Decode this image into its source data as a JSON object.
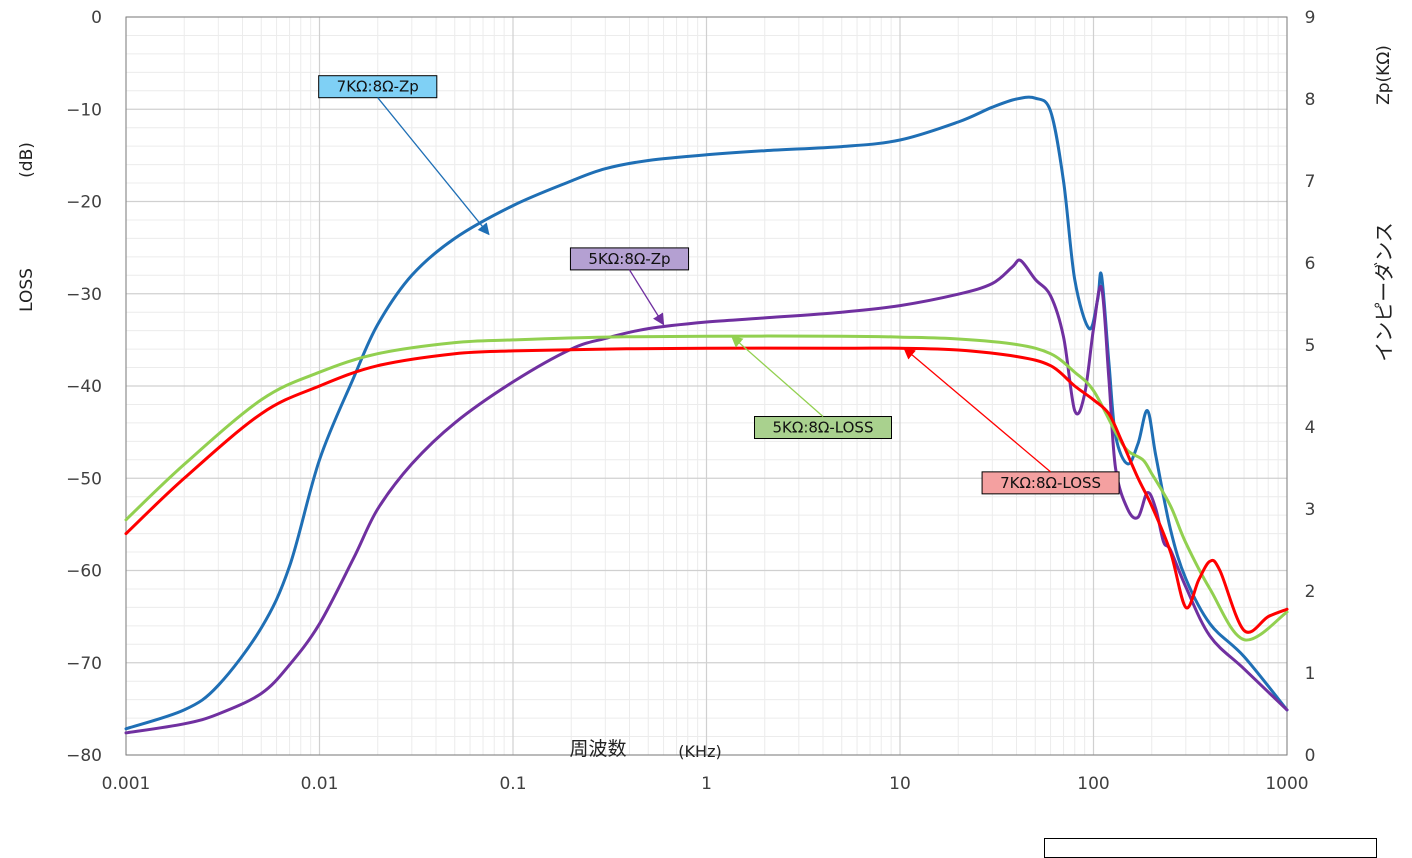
{
  "chart_data": {
    "type": "line",
    "x_scale": "log",
    "xlim": [
      0.001,
      1000
    ],
    "ylim_left": [
      -80,
      0
    ],
    "ylim_right": [
      0,
      9
    ],
    "x_ticks": [
      "0.001",
      "0.01",
      "0.1",
      "1",
      "10",
      "100",
      "1000"
    ],
    "y_left_ticks": [
      "0",
      "−10",
      "−20",
      "−30",
      "−40",
      "−50",
      "−60",
      "−70",
      "−80"
    ],
    "y_right_ticks": [
      "9",
      "8",
      "7",
      "6",
      "5",
      "4",
      "3",
      "2",
      "1",
      "0"
    ],
    "xlabel": "周波数",
    "xlabel_unit": "(KHz)",
    "ylabel_left": "LOSS",
    "ylabel_left_unit": "(dB)",
    "ylabel_right": "インピーダンス",
    "ylabel_right_unit": "Zp(KΩ)",
    "grid": true,
    "series": [
      {
        "name": "7KΩ:8Ω-Zp",
        "axis": "right",
        "color": "#1f6fb5",
        "label_fill": "#7fd0f5",
        "label_at": [
          0.02,
          8.15
        ],
        "arrow_to": [
          0.075,
          6.35
        ],
        "points": [
          [
            0.001,
            0.32
          ],
          [
            0.002,
            0.55
          ],
          [
            0.003,
            0.85
          ],
          [
            0.005,
            1.55
          ],
          [
            0.007,
            2.3
          ],
          [
            0.01,
            3.6
          ],
          [
            0.015,
            4.6
          ],
          [
            0.02,
            5.25
          ],
          [
            0.03,
            5.85
          ],
          [
            0.05,
            6.3
          ],
          [
            0.1,
            6.7
          ],
          [
            0.2,
            7.0
          ],
          [
            0.3,
            7.15
          ],
          [
            0.5,
            7.25
          ],
          [
            1,
            7.32
          ],
          [
            2,
            7.37
          ],
          [
            5,
            7.42
          ],
          [
            10,
            7.5
          ],
          [
            20,
            7.72
          ],
          [
            30,
            7.9
          ],
          [
            40,
            8.0
          ],
          [
            50,
            8.01
          ],
          [
            60,
            7.85
          ],
          [
            70,
            7.0
          ],
          [
            80,
            5.8
          ],
          [
            95,
            5.2
          ],
          [
            105,
            5.55
          ],
          [
            110,
            5.85
          ],
          [
            120,
            4.8
          ],
          [
            130,
            3.9
          ],
          [
            150,
            3.55
          ],
          [
            170,
            3.8
          ],
          [
            190,
            4.2
          ],
          [
            210,
            3.65
          ],
          [
            250,
            2.75
          ],
          [
            300,
            2.15
          ],
          [
            400,
            1.6
          ],
          [
            600,
            1.2
          ],
          [
            1000,
            0.55
          ]
        ]
      },
      {
        "name": "5KΩ:8Ω-Zp",
        "axis": "right",
        "color": "#7030a0",
        "label_fill": "#b4a0d2",
        "label_at": [
          0.4,
          6.05
        ],
        "arrow_to": [
          0.6,
          5.25
        ],
        "points": [
          [
            0.001,
            0.27
          ],
          [
            0.002,
            0.38
          ],
          [
            0.003,
            0.5
          ],
          [
            0.005,
            0.75
          ],
          [
            0.007,
            1.1
          ],
          [
            0.01,
            1.6
          ],
          [
            0.015,
            2.4
          ],
          [
            0.02,
            3.0
          ],
          [
            0.03,
            3.55
          ],
          [
            0.05,
            4.05
          ],
          [
            0.1,
            4.55
          ],
          [
            0.2,
            4.95
          ],
          [
            0.3,
            5.08
          ],
          [
            0.5,
            5.2
          ],
          [
            1,
            5.28
          ],
          [
            2,
            5.33
          ],
          [
            5,
            5.4
          ],
          [
            10,
            5.48
          ],
          [
            20,
            5.62
          ],
          [
            30,
            5.75
          ],
          [
            38,
            5.95
          ],
          [
            42,
            6.03
          ],
          [
            50,
            5.8
          ],
          [
            60,
            5.6
          ],
          [
            70,
            5.1
          ],
          [
            80,
            4.2
          ],
          [
            90,
            4.4
          ],
          [
            100,
            5.2
          ],
          [
            110,
            5.7
          ],
          [
            120,
            4.6
          ],
          [
            130,
            3.5
          ],
          [
            150,
            3.0
          ],
          [
            170,
            2.9
          ],
          [
            190,
            3.2
          ],
          [
            210,
            3.0
          ],
          [
            230,
            2.6
          ],
          [
            250,
            2.5
          ],
          [
            300,
            2.05
          ],
          [
            400,
            1.45
          ],
          [
            600,
            1.05
          ],
          [
            1000,
            0.55
          ]
        ]
      },
      {
        "name": "5KΩ:8Ω-LOSS",
        "axis": "left",
        "color": "#92d050",
        "label_fill": "#a9d18e",
        "label_at": [
          4,
          -44.5
        ],
        "arrow_to": [
          1.35,
          -34.6
        ],
        "points": [
          [
            0.001,
            -54.5
          ],
          [
            0.002,
            -48.5
          ],
          [
            0.005,
            -41.5
          ],
          [
            0.01,
            -38.5
          ],
          [
            0.02,
            -36.5
          ],
          [
            0.05,
            -35.3
          ],
          [
            0.1,
            -35
          ],
          [
            0.3,
            -34.7
          ],
          [
            1,
            -34.6
          ],
          [
            5,
            -34.6
          ],
          [
            10,
            -34.7
          ],
          [
            20,
            -34.9
          ],
          [
            40,
            -35.5
          ],
          [
            60,
            -36.5
          ],
          [
            80,
            -38.5
          ],
          [
            100,
            -40.5
          ],
          [
            130,
            -45
          ],
          [
            150,
            -47
          ],
          [
            180,
            -48
          ],
          [
            200,
            -49.5
          ],
          [
            250,
            -53
          ],
          [
            300,
            -57
          ],
          [
            400,
            -62
          ],
          [
            600,
            -67.5
          ],
          [
            1000,
            -64.5
          ]
        ]
      },
      {
        "name": "7KΩ:8Ω-LOSS",
        "axis": "left",
        "color": "#ff0000",
        "label_fill": "#f4a0a0",
        "label_at": [
          60,
          -50.5
        ],
        "arrow_to": [
          10.5,
          -35.9
        ],
        "points": [
          [
            0.001,
            -56
          ],
          [
            0.002,
            -50
          ],
          [
            0.005,
            -43
          ],
          [
            0.01,
            -40
          ],
          [
            0.02,
            -37.8
          ],
          [
            0.05,
            -36.5
          ],
          [
            0.1,
            -36.2
          ],
          [
            0.3,
            -36
          ],
          [
            1,
            -35.9
          ],
          [
            5,
            -35.9
          ],
          [
            10,
            -35.9
          ],
          [
            20,
            -36.1
          ],
          [
            40,
            -36.8
          ],
          [
            60,
            -37.8
          ],
          [
            80,
            -40
          ],
          [
            100,
            -41.5
          ],
          [
            120,
            -43
          ],
          [
            140,
            -46
          ],
          [
            170,
            -50
          ],
          [
            200,
            -53
          ],
          [
            250,
            -58
          ],
          [
            300,
            -64
          ],
          [
            350,
            -61
          ],
          [
            400,
            -59
          ],
          [
            450,
            -60
          ],
          [
            600,
            -66.5
          ],
          [
            800,
            -65
          ],
          [
            1000,
            -64.2
          ]
        ]
      }
    ]
  }
}
